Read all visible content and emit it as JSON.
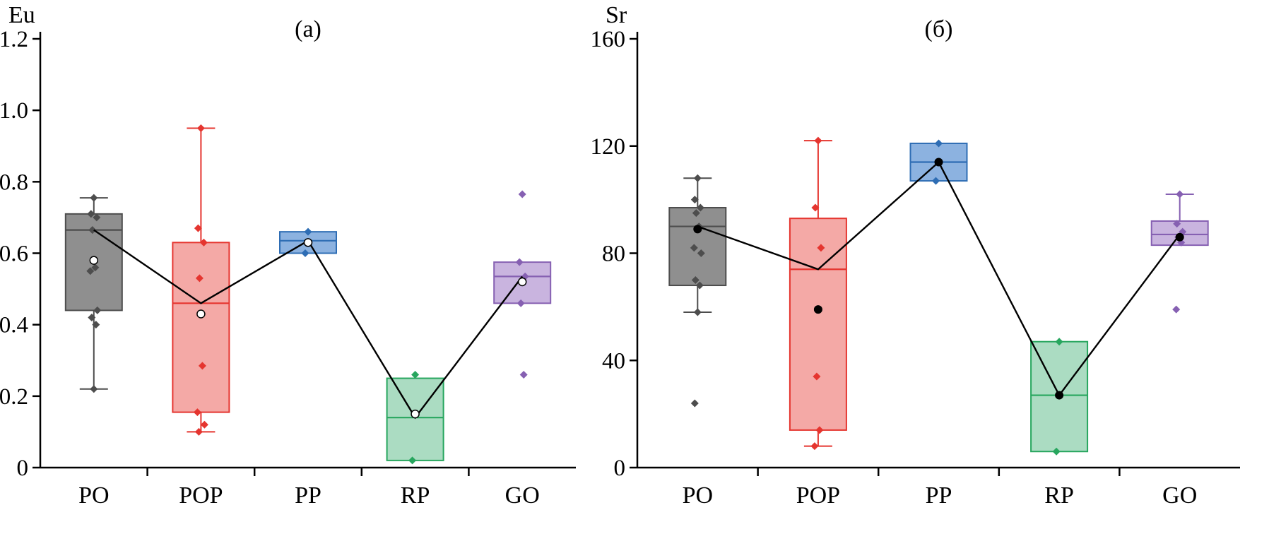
{
  "chart_data": [
    {
      "type": "box",
      "id": "a",
      "title": "(а)",
      "ylabel": "Eu",
      "ylim": [
        0,
        1.2
      ],
      "yticks": [
        0,
        0.2,
        0.4,
        0.6,
        0.8,
        1.0,
        1.2
      ],
      "ytick_labels": [
        "0",
        "0.2",
        "0.4",
        "0.6",
        "0.8",
        "1.0",
        "1.2"
      ],
      "categories": [
        "PO",
        "POP",
        "PP",
        "RP",
        "GO"
      ],
      "legend": "off",
      "grid": "off",
      "mean_marker": "open-circle",
      "median_connector_color": "#000000",
      "boxes": [
        {
          "category": "PO",
          "stroke": "#4d4d4d",
          "fill": "#8f8f8f",
          "whisker_low": 0.22,
          "q1": 0.44,
          "median": 0.665,
          "q3": 0.71,
          "whisker_high": 0.755,
          "points": [
            0.755,
            0.71,
            0.7,
            0.665,
            0.56,
            0.55,
            0.44,
            0.42,
            0.4,
            0.22
          ],
          "mean": 0.58
        },
        {
          "category": "POP",
          "stroke": "#e5352f",
          "fill": "#f4a9a6",
          "whisker_low": 0.1,
          "q1": 0.155,
          "median": 0.46,
          "q3": 0.63,
          "whisker_high": 0.95,
          "points": [
            0.95,
            0.67,
            0.63,
            0.53,
            0.285,
            0.155,
            0.12,
            0.1
          ],
          "mean": 0.43
        },
        {
          "category": "PP",
          "stroke": "#2e6db4",
          "fill": "#8cb2e0",
          "whisker_low": 0.6,
          "q1": 0.6,
          "median": 0.635,
          "q3": 0.66,
          "whisker_high": 0.66,
          "points": [
            0.66,
            0.6
          ],
          "mean": 0.63
        },
        {
          "category": "RP",
          "stroke": "#27a65e",
          "fill": "#abdcc2",
          "whisker_low": 0.02,
          "q1": 0.02,
          "median": 0.14,
          "q3": 0.25,
          "whisker_high": 0.25,
          "points": [
            0.26,
            0.02
          ],
          "mean": 0.15
        },
        {
          "category": "GO",
          "stroke": "#8660b2",
          "fill": "#c9b4df",
          "whisker_low": 0.46,
          "q1": 0.46,
          "median": 0.535,
          "q3": 0.575,
          "whisker_high": 0.575,
          "points": [
            0.765,
            0.575,
            0.535,
            0.46,
            0.26
          ],
          "mean": 0.52
        }
      ],
      "median_line": [
        0.665,
        0.46,
        0.635,
        0.14,
        0.535
      ]
    },
    {
      "type": "box",
      "id": "b",
      "title": "(б)",
      "ylabel": "Sr",
      "ylim": [
        0,
        160
      ],
      "yticks": [
        0,
        40,
        80,
        120,
        160
      ],
      "ytick_labels": [
        "0",
        "40",
        "80",
        "120",
        "160"
      ],
      "categories": [
        "PO",
        "POP",
        "PP",
        "RP",
        "GO"
      ],
      "legend": "off",
      "grid": "off",
      "mean_marker": "filled-circle",
      "median_connector_color": "#000000",
      "boxes": [
        {
          "category": "PO",
          "stroke": "#4d4d4d",
          "fill": "#8f8f8f",
          "whisker_low": 58,
          "q1": 68,
          "median": 90,
          "q3": 97,
          "whisker_high": 108,
          "points": [
            108,
            100,
            97,
            95,
            90,
            82,
            80,
            70,
            68,
            58,
            24
          ],
          "mean": 89
        },
        {
          "category": "POP",
          "stroke": "#e5352f",
          "fill": "#f4a9a6",
          "whisker_low": 8,
          "q1": 14,
          "median": 74,
          "q3": 93,
          "whisker_high": 122,
          "points": [
            122,
            97,
            82,
            34,
            14,
            8
          ],
          "mean": 59
        },
        {
          "category": "PP",
          "stroke": "#2e6db4",
          "fill": "#8cb2e0",
          "whisker_low": 107,
          "q1": 107,
          "median": 114,
          "q3": 121,
          "whisker_high": 121,
          "points": [
            121,
            107
          ],
          "mean": 114
        },
        {
          "category": "RP",
          "stroke": "#27a65e",
          "fill": "#abdcc2",
          "whisker_low": 6,
          "q1": 6,
          "median": 27,
          "q3": 47,
          "whisker_high": 47,
          "points": [
            47,
            6
          ],
          "mean": 27
        },
        {
          "category": "GO",
          "stroke": "#8660b2",
          "fill": "#c9b4df",
          "whisker_low": 83,
          "q1": 83,
          "median": 87,
          "q3": 92,
          "whisker_high": 102,
          "points": [
            102,
            91,
            88,
            86,
            84,
            59
          ],
          "mean": 86
        }
      ],
      "median_line": [
        90,
        74,
        114,
        27,
        87
      ]
    }
  ]
}
